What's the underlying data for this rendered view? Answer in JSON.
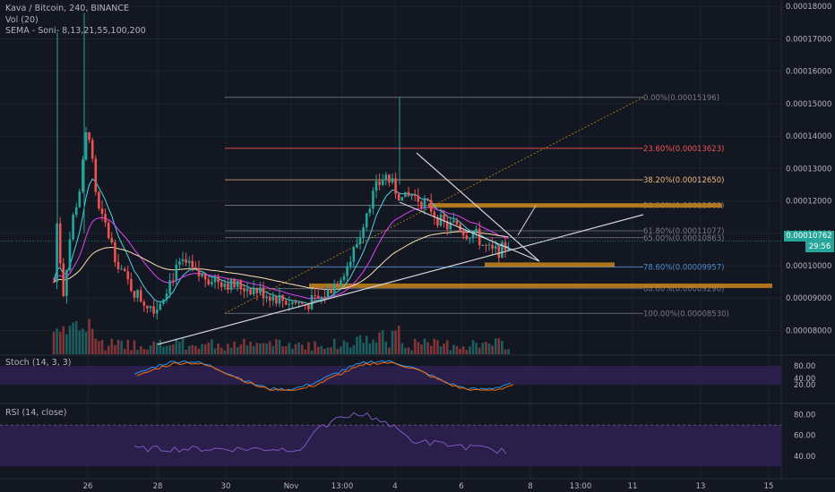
{
  "legend": {
    "symbol": "Kava / Bitcoin, 240, BINANCE",
    "vol": "Vol (20)",
    "sema": "SEMA - Soni- 8,13,21,55,100,200"
  },
  "stoch_label": "Stoch (14, 3, 3)",
  "rsi_label": "RSI (14, close)",
  "current_price": "0.00010762",
  "countdown": "29:56",
  "colors": {
    "background": "#131722",
    "up": "#26a69a",
    "down": "#ef5350",
    "orange_zone": "#c9861a",
    "stoch_band": "#2a1e4a",
    "rsi_band": "#2a1e4a",
    "fib_line": "#787b86"
  },
  "chart_data": {
    "type": "candlestick",
    "title": "Kava / Bitcoin, 240, BINANCE",
    "price_axis": {
      "ticks": [
        "0.00018000",
        "0.00017000",
        "0.00016000",
        "0.00015000",
        "0.00014000",
        "0.00013000",
        "0.00012000",
        "0.00011000",
        "0.00010000",
        "0.00009000",
        "0.00008000"
      ],
      "range": [
        7.24e-05,
        0.000182
      ]
    },
    "time_axis": {
      "ticks": [
        "26",
        "28",
        "30",
        "Nov",
        "13:00",
        "4",
        "6",
        "8",
        "13:00",
        "11",
        "13",
        "15"
      ]
    },
    "fib_levels": [
      {
        "label": "0.00%(0.00015196)",
        "value": 0.00015196,
        "color": "#787b86"
      },
      {
        "label": "23.60%(0.00013623)",
        "value": 0.00013623,
        "color": "#ef5350"
      },
      {
        "label": "38.20%(0.00012650)",
        "value": 0.0001265,
        "color": "#f0b67f"
      },
      {
        "label": "50.00%(0.00011863)",
        "value": 0.00011863,
        "color": "#787b86"
      },
      {
        "label": "61.80%(0.00011077)",
        "value": 0.00011077,
        "color": "#787b86"
      },
      {
        "label": "65.00%(0.00010863)",
        "value": 0.00010863,
        "color": "#787b86"
      },
      {
        "label": "78.60%(0.00009957)",
        "value": 9.957e-05,
        "color": "#4f8cc9"
      },
      {
        "label": "88.60%(0.00009290)",
        "value": 9.29e-05,
        "color": "#787b86"
      },
      {
        "label": "100.00%(0.00008530)",
        "value": 8.53e-05,
        "color": "#787b86"
      }
    ],
    "orange_zones": [
      {
        "top": 0.0001193,
        "bottom": 0.000118
      },
      {
        "top": 0.000101,
        "bottom": 9.98e-05
      },
      {
        "top": 9.45e-05,
        "bottom": 9.33e-05
      }
    ],
    "stoch_axis": {
      "ticks": [
        "80.00",
        "40.00",
        "20.00"
      ],
      "band": [
        20,
        80
      ]
    },
    "rsi_axis": {
      "ticks": [
        "80.00",
        "60.00",
        "40.00"
      ],
      "band": [
        30,
        70
      ]
    }
  }
}
